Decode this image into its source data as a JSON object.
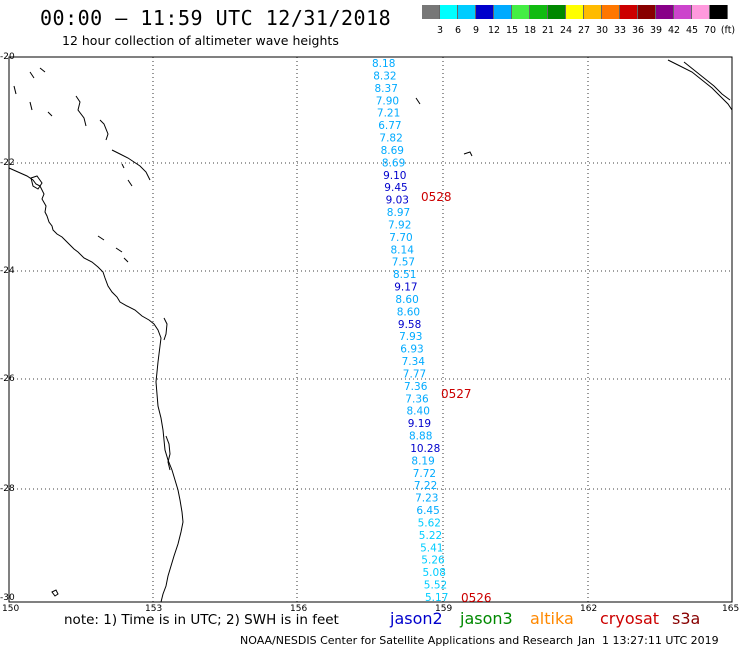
{
  "header": {
    "title": "00:00 — 11:59 UTC 12/31/2018",
    "subtitle": "12 hour collection of altimeter wave heights"
  },
  "color_scale": {
    "labels": [
      "3",
      "6",
      "9",
      "12",
      "15",
      "18",
      "21",
      "24",
      "27",
      "30",
      "33",
      "36",
      "39",
      "42",
      "45",
      "70",
      "(ft)"
    ],
    "swatches": [
      "#777777",
      "#00ffff",
      "#00ccff",
      "#0000cc",
      "#00aaff",
      "#44ee44",
      "#11bb11",
      "#008800",
      "#ffff00",
      "#ffbb00",
      "#ff7700",
      "#cc0000",
      "#880000",
      "#880088",
      "#cc44cc",
      "#ff99dd",
      "#000000"
    ]
  },
  "axes": {
    "lat_labels": [
      "-20",
      "-22",
      "-24",
      "-26",
      "-28",
      "-30"
    ],
    "lon_labels": [
      "150",
      "153",
      "156",
      "159",
      "162",
      "165"
    ]
  },
  "track": {
    "readings": [
      "8.18",
      "8.32",
      "8.37",
      "7.90",
      "7.21",
      "6.77",
      "7.82",
      "8.69",
      "8.69",
      "9.10",
      "9.45",
      "9.03",
      "8.97",
      "7.92",
      "7.70",
      "8.14",
      "7.57",
      "8.51",
      "9.17",
      "8.60",
      "8.60",
      "9.58",
      "7.93",
      "6.93",
      "7.34",
      "7.77",
      "7.36",
      "7.36",
      "8.40",
      "9.19",
      "8.88",
      "10.28",
      "8.19",
      "7.72",
      "7.22",
      "7.23",
      "6.45",
      "5.62",
      "5.22",
      "5.41",
      "5.26",
      "5.08",
      "5.52",
      "5.17"
    ],
    "time_labels": [
      "0528",
      "0527",
      "0526"
    ],
    "time_color": "#cc0000"
  },
  "footer": {
    "note": "note: 1) Time is in UTC; 2) SWH is in feet",
    "satellites": [
      {
        "name": "jason2",
        "color": "#0000cc"
      },
      {
        "name": "jason3",
        "color": "#008800"
      },
      {
        "name": "altika",
        "color": "#ff8800"
      },
      {
        "name": "cryosat",
        "color": "#cc0000"
      },
      {
        "name": "s3a",
        "color": "#880000"
      }
    ],
    "credit": "NOAA/NESDIS Center for Satellite Applications and Research",
    "timestamp": "Jan  1 13:27:11 UTC 2019"
  }
}
